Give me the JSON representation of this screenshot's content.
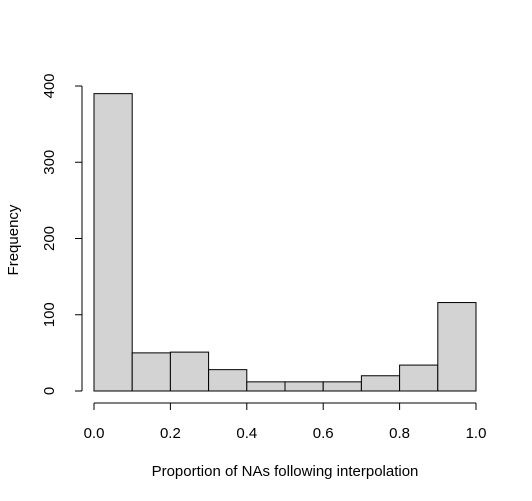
{
  "chart_data": {
    "type": "bar",
    "subtype": "histogram",
    "title": "",
    "xlabel": "Proportion of NAs following interpolation",
    "ylabel": "Frequency",
    "bins": [
      {
        "start": 0.0,
        "end": 0.1,
        "count": 390
      },
      {
        "start": 0.1,
        "end": 0.2,
        "count": 50
      },
      {
        "start": 0.2,
        "end": 0.3,
        "count": 51
      },
      {
        "start": 0.3,
        "end": 0.4,
        "count": 28
      },
      {
        "start": 0.4,
        "end": 0.5,
        "count": 12
      },
      {
        "start": 0.5,
        "end": 0.6,
        "count": 12
      },
      {
        "start": 0.6,
        "end": 0.7,
        "count": 12
      },
      {
        "start": 0.7,
        "end": 0.8,
        "count": 20
      },
      {
        "start": 0.8,
        "end": 0.9,
        "count": 34
      },
      {
        "start": 0.9,
        "end": 1.0,
        "count": 116
      }
    ],
    "xlim": [
      0.0,
      1.0
    ],
    "ylim": [
      0,
      400
    ],
    "x_ticks": [
      {
        "value": 0.0,
        "label": "0.0"
      },
      {
        "value": 0.2,
        "label": "0.2"
      },
      {
        "value": 0.4,
        "label": "0.4"
      },
      {
        "value": 0.6,
        "label": "0.6"
      },
      {
        "value": 0.8,
        "label": "0.8"
      },
      {
        "value": 1.0,
        "label": "1.0"
      }
    ],
    "y_ticks": [
      {
        "value": 0,
        "label": "0"
      },
      {
        "value": 100,
        "label": "100"
      },
      {
        "value": 200,
        "label": "200"
      },
      {
        "value": 300,
        "label": "300"
      },
      {
        "value": 400,
        "label": "400"
      }
    ],
    "bar_fill": "#d3d3d3",
    "bar_stroke": "#000000",
    "grid": false,
    "legend": "none"
  }
}
